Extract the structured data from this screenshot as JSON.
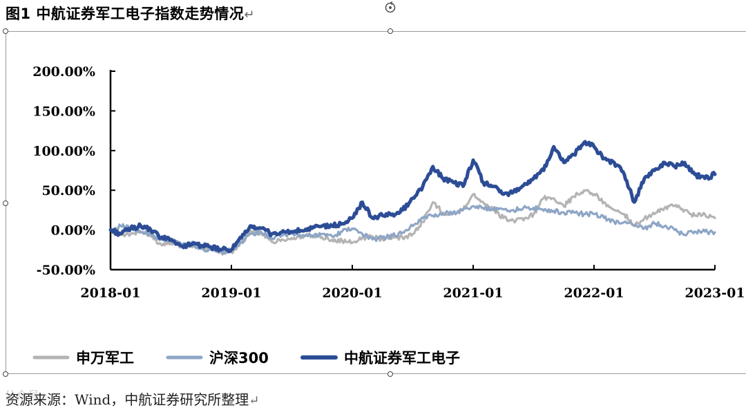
{
  "doc_title": "图1  中航证券军工电子指数走势情况",
  "paragraph_mark": "↵",
  "source_note": "资源来源：Wind，中航证券研究所整理",
  "watermark": "公众号",
  "colors": {
    "shenwan": "#b4b4b4",
    "hs300": "#8ea6c6",
    "avic": "#2c4d96",
    "axis": "#000000"
  },
  "chart_data": {
    "type": "line",
    "title": "",
    "xlabel": "",
    "ylabel": "",
    "x_ticks": [
      "2018-01",
      "2019-01",
      "2020-01",
      "2021-01",
      "2022-01",
      "2023-01"
    ],
    "y_ticks": [
      "200.00%",
      "150.00%",
      "100.00%",
      "50.00%",
      "0.00%",
      "-50.00%"
    ],
    "ylim": [
      -50,
      200
    ],
    "xlim": [
      "2018-01",
      "2023-01"
    ],
    "grid": false,
    "legend_position": "bottom",
    "x": [
      "2018-01",
      "2018-02",
      "2018-03",
      "2018-04",
      "2018-05",
      "2018-06",
      "2018-07",
      "2018-08",
      "2018-09",
      "2018-10",
      "2018-11",
      "2018-12",
      "2019-01",
      "2019-02",
      "2019-03",
      "2019-04",
      "2019-05",
      "2019-06",
      "2019-07",
      "2019-08",
      "2019-09",
      "2019-10",
      "2019-11",
      "2019-12",
      "2020-01",
      "2020-02",
      "2020-03",
      "2020-04",
      "2020-05",
      "2020-06",
      "2020-07",
      "2020-08",
      "2020-09",
      "2020-10",
      "2020-11",
      "2020-12",
      "2021-01",
      "2021-02",
      "2021-03",
      "2021-04",
      "2021-05",
      "2021-06",
      "2021-07",
      "2021-08",
      "2021-09",
      "2021-10",
      "2021-11",
      "2021-12",
      "2022-01",
      "2022-02",
      "2022-03",
      "2022-04",
      "2022-05",
      "2022-06",
      "2022-07",
      "2022-08",
      "2022-09",
      "2022-10",
      "2022-11",
      "2022-12",
      "2023-01"
    ],
    "series": [
      {
        "name": "申万军工",
        "color_key": "shenwan",
        "values": [
          0,
          -5,
          -5,
          -2,
          -8,
          -18,
          -15,
          -20,
          -19,
          -21,
          -25,
          -28,
          -28,
          -15,
          -2,
          -5,
          -15,
          -12,
          -10,
          -9,
          -7,
          -9,
          -12,
          -14,
          -16,
          -10,
          -8,
          -12,
          -8,
          -10,
          -5,
          10,
          35,
          22,
          20,
          25,
          45,
          35,
          25,
          15,
          12,
          12,
          20,
          40,
          40,
          30,
          42,
          50,
          45,
          35,
          25,
          20,
          5,
          15,
          20,
          28,
          30,
          25,
          18,
          20,
          15
        ]
      },
      {
        "name": "沪深300",
        "color_key": "hs300",
        "values": [
          0,
          5,
          2,
          -3,
          -5,
          -12,
          -13,
          -18,
          -16,
          -24,
          -25,
          -28,
          -25,
          -15,
          -5,
          -3,
          -10,
          -7,
          -5,
          -7,
          -7,
          -5,
          -8,
          -2,
          2,
          -5,
          -12,
          -10,
          -7,
          -3,
          5,
          15,
          18,
          20,
          22,
          25,
          30,
          28,
          26,
          26,
          25,
          28,
          28,
          24,
          24,
          22,
          22,
          20,
          20,
          15,
          10,
          10,
          5,
          2,
          8,
          5,
          0,
          -6,
          -2,
          -2,
          -3
        ]
      },
      {
        "name": "中航证券军工电子",
        "color_key": "avic",
        "values": [
          0,
          -5,
          2,
          5,
          0,
          -10,
          -12,
          -20,
          -18,
          -20,
          -22,
          -25,
          -25,
          -10,
          5,
          2,
          -5,
          -3,
          -2,
          -1,
          2,
          5,
          5,
          8,
          15,
          35,
          15,
          18,
          20,
          25,
          40,
          55,
          80,
          65,
          60,
          55,
          88,
          60,
          55,
          45,
          48,
          56,
          65,
          75,
          105,
          85,
          95,
          110,
          105,
          90,
          85,
          70,
          35,
          65,
          75,
          85,
          80,
          85,
          70,
          65,
          70
        ]
      }
    ]
  }
}
